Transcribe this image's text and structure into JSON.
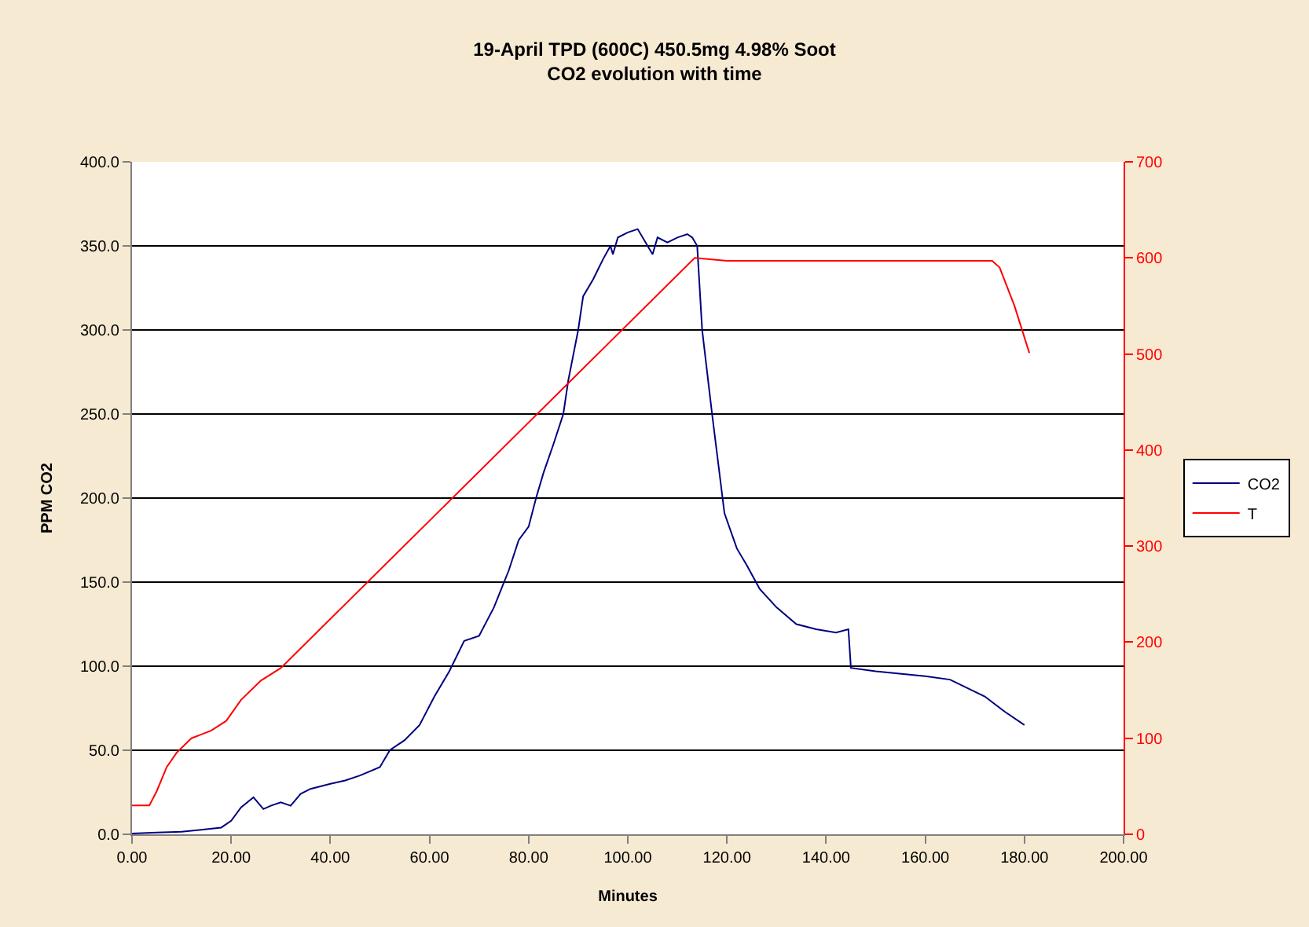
{
  "chart_data": {
    "type": "line",
    "title": "19-April TPD (600C) 450.5mg 4.98% Soot",
    "subtitle": "CO2 evolution with time",
    "xlabel": "Minutes",
    "ylabel": "PPM CO2",
    "xlim": [
      0,
      200
    ],
    "xticks": [
      {
        "value": 0,
        "label": "0.00"
      },
      {
        "value": 20,
        "label": "20.00"
      },
      {
        "value": 40,
        "label": "40.00"
      },
      {
        "value": 60,
        "label": "60.00"
      },
      {
        "value": 80,
        "label": "80.00"
      },
      {
        "value": 100,
        "label": "100.00"
      },
      {
        "value": 120,
        "label": "120.00"
      },
      {
        "value": 140,
        "label": "140.00"
      },
      {
        "value": 160,
        "label": "160.00"
      },
      {
        "value": 180,
        "label": "180.00"
      },
      {
        "value": 200,
        "label": "200.00"
      }
    ],
    "ylim": [
      0,
      400
    ],
    "yticks": [
      {
        "value": 0,
        "label": "0.0"
      },
      {
        "value": 50,
        "label": "50.0"
      },
      {
        "value": 100,
        "label": "100.0"
      },
      {
        "value": 150,
        "label": "150.0"
      },
      {
        "value": 200,
        "label": "200.0"
      },
      {
        "value": 250,
        "label": "250.0"
      },
      {
        "value": 300,
        "label": "300.0"
      },
      {
        "value": 350,
        "label": "350.0"
      },
      {
        "value": 400,
        "label": "400.0"
      }
    ],
    "y2lim": [
      0,
      700
    ],
    "y2ticks": [
      0,
      100,
      200,
      300,
      400,
      500,
      600,
      700
    ],
    "grid": "y",
    "legend": "right",
    "marker": "none",
    "line_style": "solid",
    "series": [
      {
        "name": "CO2",
        "color": "#000080",
        "x": [
          0,
          5,
          10,
          15,
          18,
          20,
          22,
          24.5,
          26.5,
          28,
          30,
          32,
          34,
          36,
          40,
          43,
          46,
          50,
          52,
          55,
          58,
          61,
          64,
          67,
          70,
          73,
          76,
          78,
          80,
          81.5,
          83,
          85,
          87,
          88,
          89,
          90,
          91,
          93,
          95,
          96.5,
          97,
          98,
          100,
          102,
          104,
          105,
          106,
          108,
          110,
          112,
          113,
          114,
          115,
          117,
          119.5,
          122,
          124,
          126.6,
          130,
          134,
          138,
          142,
          144.5,
          145,
          150,
          160,
          165,
          172,
          176,
          180
        ],
        "values": [
          0.5,
          1,
          1.5,
          3,
          4,
          8,
          16,
          22,
          15,
          17,
          19,
          17,
          24,
          27,
          30,
          32,
          35,
          40,
          50,
          56,
          65,
          82,
          97,
          115,
          118,
          135,
          157,
          175,
          183,
          200,
          215,
          232,
          250,
          270,
          285,
          300,
          320,
          330,
          342,
          350,
          345,
          355,
          358,
          360,
          350,
          345,
          355,
          352,
          355,
          357,
          355,
          350,
          300,
          250,
          191,
          170,
          160,
          146,
          135,
          125,
          122,
          120,
          122,
          99,
          97,
          94,
          92,
          82,
          73,
          65
        ]
      },
      {
        "name": "T",
        "color": "#ff0000",
        "axis": "y2",
        "x": [
          0,
          3.5,
          5,
          7,
          9,
          12,
          16,
          19,
          22,
          26,
          30,
          113.5,
          120,
          173.5,
          175,
          178,
          181
        ],
        "values": [
          30,
          30,
          45,
          70,
          85,
          100,
          108,
          118,
          140,
          160,
          173,
          600,
          597,
          597,
          590,
          550,
          501
        ]
      }
    ]
  }
}
